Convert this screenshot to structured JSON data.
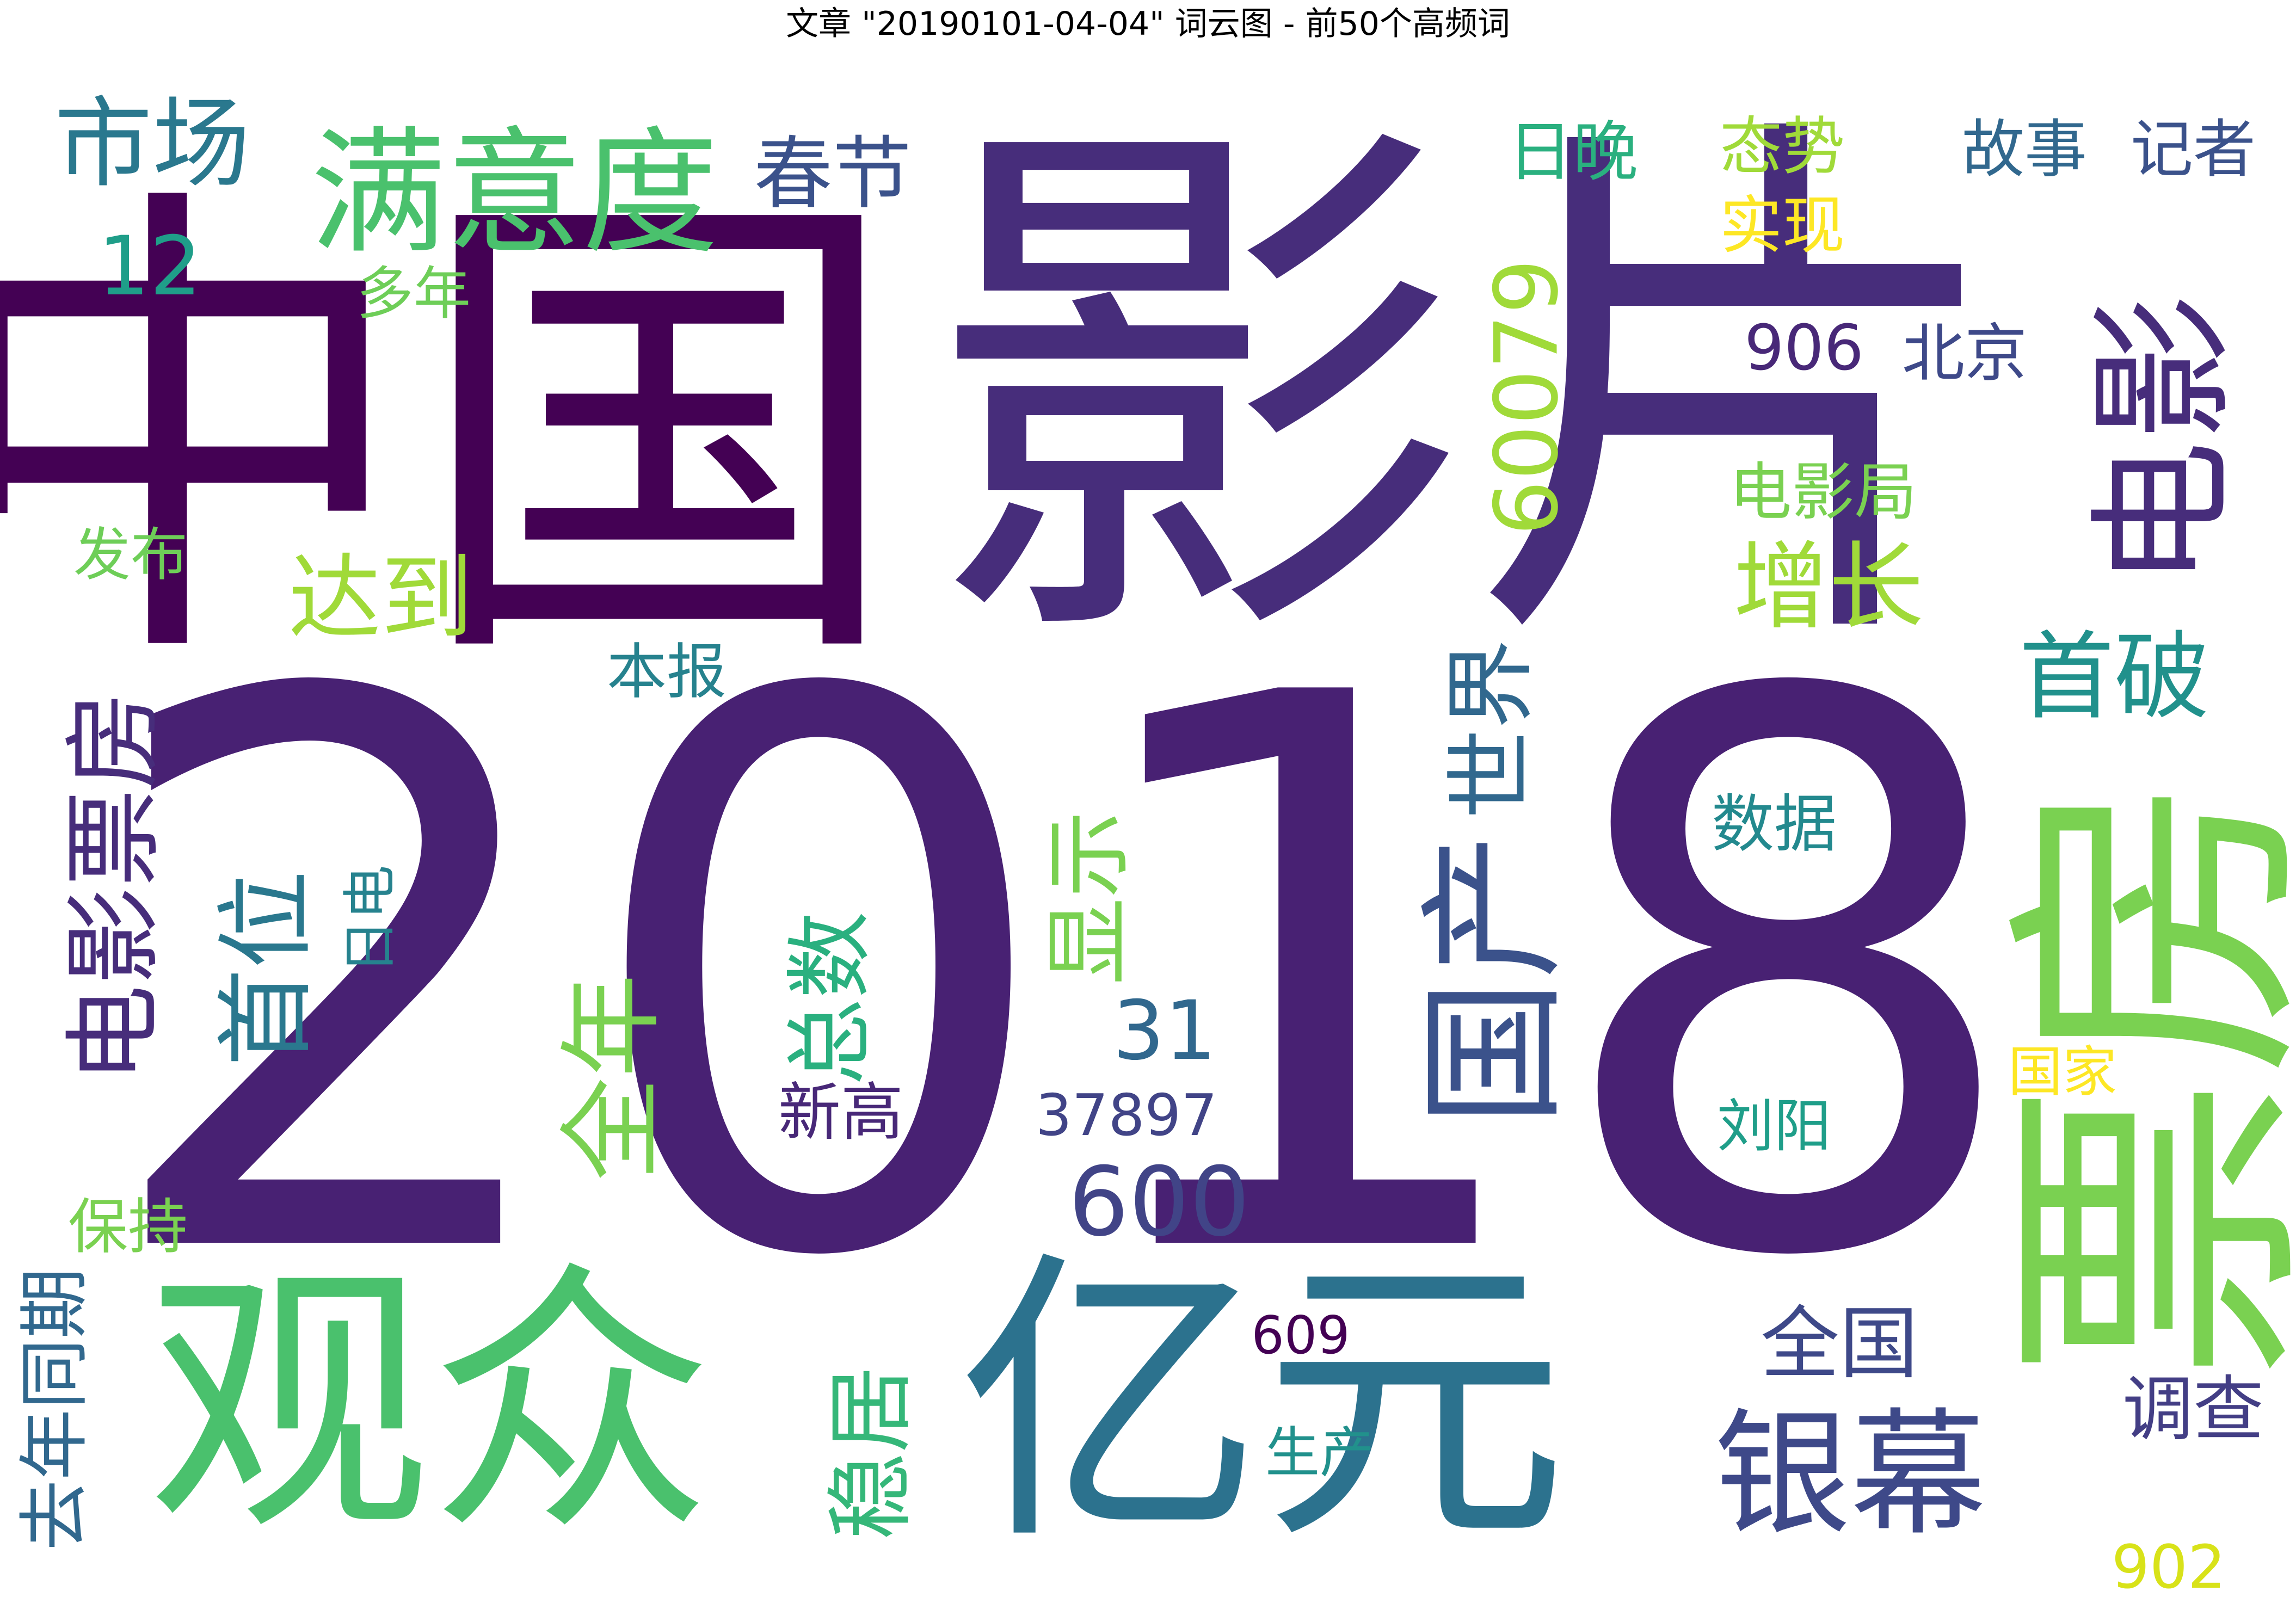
{
  "title": "文章 \"20190101-04-04\" 词云图 - 前50个高频词",
  "words": [
    {
      "text": "2018",
      "color": "#482173",
      "vertical": false
    },
    {
      "text": "中国",
      "color": "#440154",
      "vertical": false
    },
    {
      "text": "影片",
      "color": "#472d7b",
      "vertical": false
    },
    {
      "text": "票房",
      "color": "#7ad151",
      "vertical": true
    },
    {
      "text": "观众",
      "color": "#4ac16d",
      "vertical": false
    },
    {
      "text": "亿元",
      "color": "#2c728e",
      "vertical": false
    },
    {
      "text": "电影",
      "color": "#472d7b",
      "vertical": true
    },
    {
      "text": "满意度",
      "color": "#4ac16d",
      "vertical": false
    },
    {
      "text": "国产",
      "color": "#3b528b",
      "vertical": true
    },
    {
      "text": "银幕",
      "color": "#3e4989",
      "vertical": false
    },
    {
      "text": "电影票房",
      "color": "#472d7b",
      "vertical": true
    },
    {
      "text": "市场",
      "color": "#2a788e",
      "vertical": false
    },
    {
      "text": "首位",
      "color": "#2a788e",
      "vertical": true
    },
    {
      "text": "全年",
      "color": "#7ad151",
      "vertical": true
    },
    {
      "text": "总数",
      "color": "#2ab07f",
      "vertical": true
    },
    {
      "text": "稳居",
      "color": "#35b779",
      "vertical": true
    },
    {
      "text": "世界",
      "color": "#31688e",
      "vertical": true
    },
    {
      "text": "显示",
      "color": "#7ad151",
      "vertical": true
    },
    {
      "text": "600",
      "color": "#414487",
      "vertical": false
    },
    {
      "text": "增长",
      "color": "#a0da39",
      "vertical": false
    },
    {
      "text": "首破",
      "color": "#21918c",
      "vertical": false
    },
    {
      "text": "达到",
      "color": "#a0da39",
      "vertical": false
    },
    {
      "text": "60079",
      "color": "#a0da39",
      "vertical": true
    },
    {
      "text": "春节",
      "color": "#3b528b",
      "vertical": false
    },
    {
      "text": "12",
      "color": "#1f9e89",
      "vertical": false
    },
    {
      "text": "全国",
      "color": "#3e4989",
      "vertical": false
    },
    {
      "text": "调查",
      "color": "#433e85",
      "vertical": false
    },
    {
      "text": "31",
      "color": "#31688e",
      "vertical": false
    },
    {
      "text": "去年同期",
      "color": "#31688e",
      "vertical": true
    },
    {
      "text": "日晚",
      "color": "#2ab07f",
      "vertical": false
    },
    {
      "text": "态势",
      "color": "#a0da39",
      "vertical": false
    },
    {
      "text": "实现",
      "color": "#fde725",
      "vertical": false
    },
    {
      "text": "故事",
      "color": "#31688e",
      "vertical": false
    },
    {
      "text": "记者",
      "color": "#3b528b",
      "vertical": false
    },
    {
      "text": "电影局",
      "color": "#7ad151",
      "vertical": false
    },
    {
      "text": "906",
      "color": "#482878",
      "vertical": false
    },
    {
      "text": "北京",
      "color": "#3e4989",
      "vertical": false
    },
    {
      "text": "多年",
      "color": "#6ece58",
      "vertical": false
    },
    {
      "text": "发布",
      "color": "#6ece58",
      "vertical": false
    },
    {
      "text": "本报",
      "color": "#26828e",
      "vertical": false
    },
    {
      "text": "数据",
      "color": "#23898e",
      "vertical": false
    },
    {
      "text": "日电",
      "color": "#26828e",
      "vertical": true
    },
    {
      "text": "新高",
      "color": "#482878",
      "vertical": false
    },
    {
      "text": "37897",
      "color": "#414487",
      "vertical": false
    },
    {
      "text": "保持",
      "color": "#7ad151",
      "vertical": false
    },
    {
      "text": "国家",
      "color": "#fde725",
      "vertical": false
    },
    {
      "text": "刘阳",
      "color": "#1f9e89",
      "vertical": false
    },
    {
      "text": "609",
      "color": "#440154",
      "vertical": false
    },
    {
      "text": "生产",
      "color": "#21918c",
      "vertical": false
    },
    {
      "text": "902",
      "color": "#d8e219",
      "vertical": false
    }
  ]
}
